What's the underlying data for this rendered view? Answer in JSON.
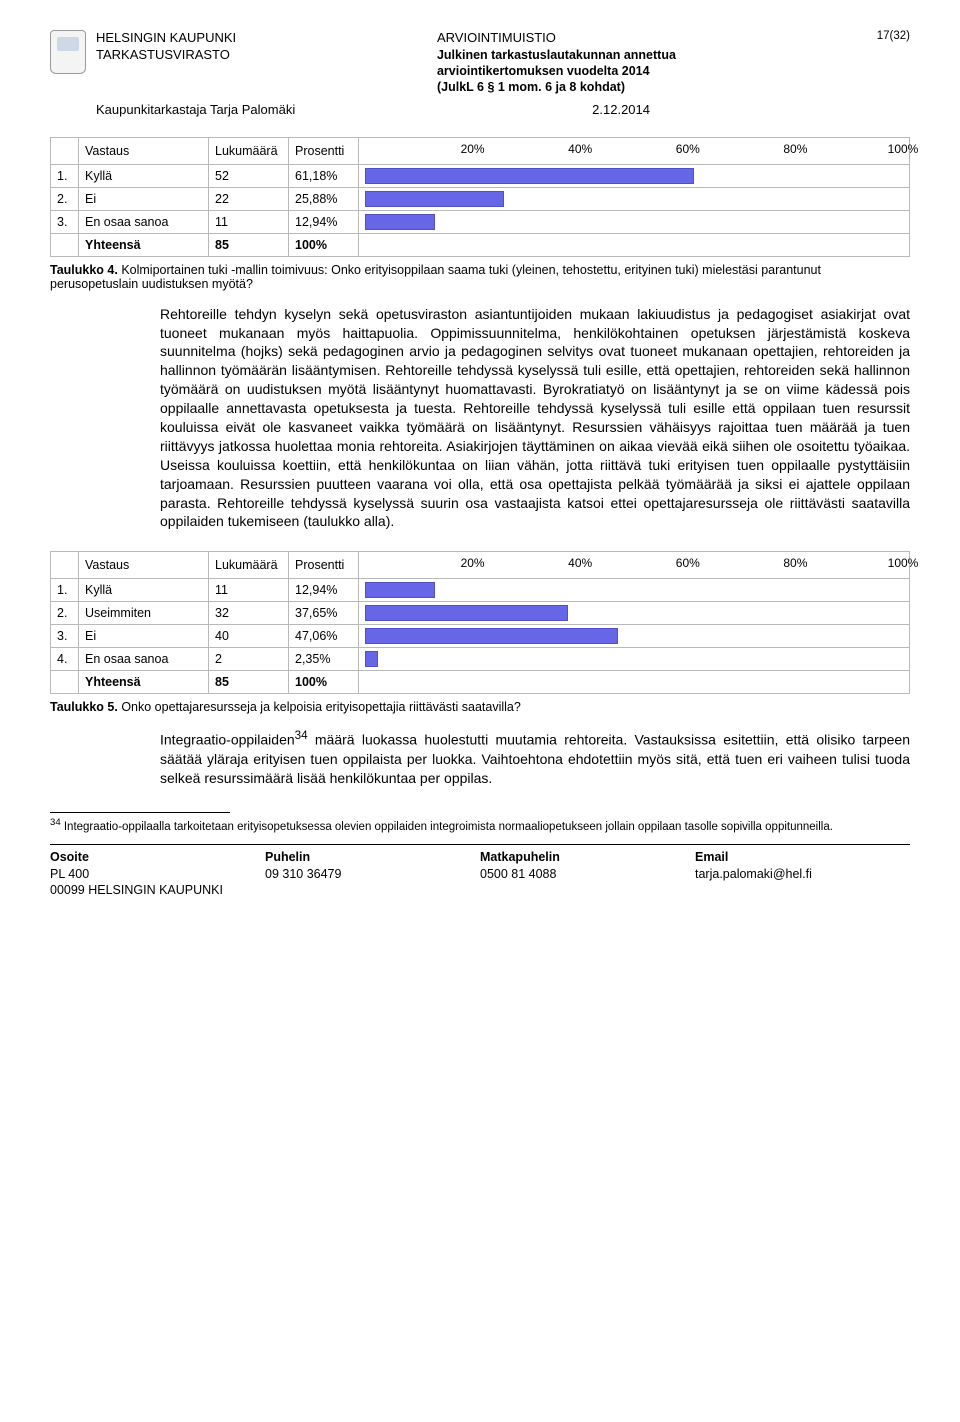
{
  "header": {
    "org": "HELSINGIN KAUPUNKI",
    "unit": "TARKASTUSVIRASTO",
    "center_title": "ARVIOINTIMUISTIO",
    "center_sub1": "Julkinen tarkastuslautakunnan annettua",
    "center_sub2": "arviointikertomuksen vuodelta 2014",
    "center_sub3": "(JulkL 6 § 1 mom. 6 ja 8 kohdat)",
    "page_num": "17(32)",
    "left_sub": "Kaupunkitarkastaja Tarja Palomäki",
    "date": "2.12.2014"
  },
  "table1": {
    "headers": {
      "resp": "Vastaus",
      "count": "Lukumäärä",
      "pct": "Prosentti"
    },
    "scale": [
      "20%",
      "40%",
      "60%",
      "80%",
      "100%"
    ],
    "rows": [
      {
        "idx": "1.",
        "label": "Kyllä",
        "count": "52",
        "pct": "61,18%",
        "bar_pct": 61.18
      },
      {
        "idx": "2.",
        "label": "Ei",
        "count": "22",
        "pct": "25,88%",
        "bar_pct": 25.88
      },
      {
        "idx": "3.",
        "label": "En osaa sanoa",
        "count": "11",
        "pct": "12,94%",
        "bar_pct": 12.94
      }
    ],
    "total_label": "Yhteensä",
    "total_count": "85",
    "total_pct": "100%",
    "caption_label": "Taulukko 4.",
    "caption_text": "Kolmiportainen tuki -mallin toimivuus: Onko erityisoppilaan saama tuki (yleinen, tehostettu, erityinen tuki) mielestäsi parantunut perusopetuslain uudistuksen myötä?"
  },
  "para1": "Rehtoreille tehdyn kyselyn sekä opetusviraston asiantuntijoiden mukaan lakiuudistus ja pedagogiset asiakirjat ovat tuoneet mukanaan myös haittapuolia. Oppimissuunnitelma, henkilökohtainen opetuksen järjestämistä koskeva suunnitelma (hojks) sekä pedagoginen arvio ja pedagoginen selvitys ovat tuoneet mukanaan opettajien, rehtoreiden ja hallinnon työmäärän lisääntymisen. Rehtoreille tehdyssä kyselyssä tuli esille, että opettajien, rehtoreiden sekä hallinnon työmäärä on uudistuksen myötä lisääntynyt huomattavasti. Byrokratiatyö on lisääntynyt ja se on viime kädessä pois oppilaalle annettavasta opetuksesta ja tuesta. Rehtoreille tehdyssä kyselyssä tuli esille että oppilaan tuen resurssit kouluissa eivät ole kasvaneet vaikka työmäärä on lisääntynyt. Resurssien vähäisyys rajoittaa tuen määrää ja tuen riittävyys jatkossa huolettaa monia rehtoreita. Asiakirjojen täyttäminen on aikaa vievää eikä siihen ole osoitettu työaikaa. Useissa kouluissa koettiin, että henkilökuntaa on liian vähän, jotta riittävä tuki erityisen tuen oppilaalle pystyttäisiin tarjoamaan. Resurssien puutteen vaarana voi olla, että osa opettajista pelkää työmäärää ja siksi ei ajattele oppilaan parasta. Rehtoreille tehdyssä kyselyssä suurin osa vastaajista katsoi ettei opettajaresursseja ole riittävästi saatavilla oppilaiden tukemiseen (taulukko alla).",
  "table2": {
    "headers": {
      "resp": "Vastaus",
      "count": "Lukumäärä",
      "pct": "Prosentti"
    },
    "scale": [
      "20%",
      "40%",
      "60%",
      "80%",
      "100%"
    ],
    "rows": [
      {
        "idx": "1.",
        "label": "Kyllä",
        "count": "11",
        "pct": "12,94%",
        "bar_pct": 12.94
      },
      {
        "idx": "2.",
        "label": "Useimmiten",
        "count": "32",
        "pct": "37,65%",
        "bar_pct": 37.65
      },
      {
        "idx": "3.",
        "label": "Ei",
        "count": "40",
        "pct": "47,06%",
        "bar_pct": 47.06
      },
      {
        "idx": "4.",
        "label": "En osaa sanoa",
        "count": "2",
        "pct": "2,35%",
        "bar_pct": 2.35
      }
    ],
    "total_label": "Yhteensä",
    "total_count": "85",
    "total_pct": "100%",
    "caption_label": "Taulukko 5.",
    "caption_text": "Onko opettajaresursseja ja kelpoisia erityisopettajia riittävästi saatavilla?"
  },
  "para2_pre": "Integraatio-oppilaiden",
  "para2_sup": "34",
  "para2_post": " määrä luokassa huolestutti muutamia rehtoreita. Vastauksissa esitettiin, että olisiko tarpeen säätää yläraja erityisen tuen oppilaista per luokka. Vaihtoehtona ehdotettiin myös sitä, että tuen eri vaiheen tulisi tuoda selkeä resurssimäärä lisää henkilökuntaa per oppilas.",
  "footnote": {
    "num": "34",
    "text": "Integraatio-oppilaalla tarkoitetaan erityisopetuksessa olevien oppilaiden integroimista normaaliopetukseen jollain oppilaan tasolle sopivilla oppitunneilla."
  },
  "footer": {
    "c1_label": "Osoite",
    "c1_l1": "PL 400",
    "c1_l2": "00099 HELSINGIN KAUPUNKI",
    "c2_label": "Puhelin",
    "c2_l1": "09 310 36479",
    "c3_label": "Matkapuhelin",
    "c3_l1": "0500 81 4088",
    "c4_label": "Email",
    "c4_l1": "tarja.palomaki@hel.fi"
  },
  "colors": {
    "bar_fill": "#6666e6",
    "bar_border": "#5050c8",
    "table_border": "#b9b9b9"
  }
}
